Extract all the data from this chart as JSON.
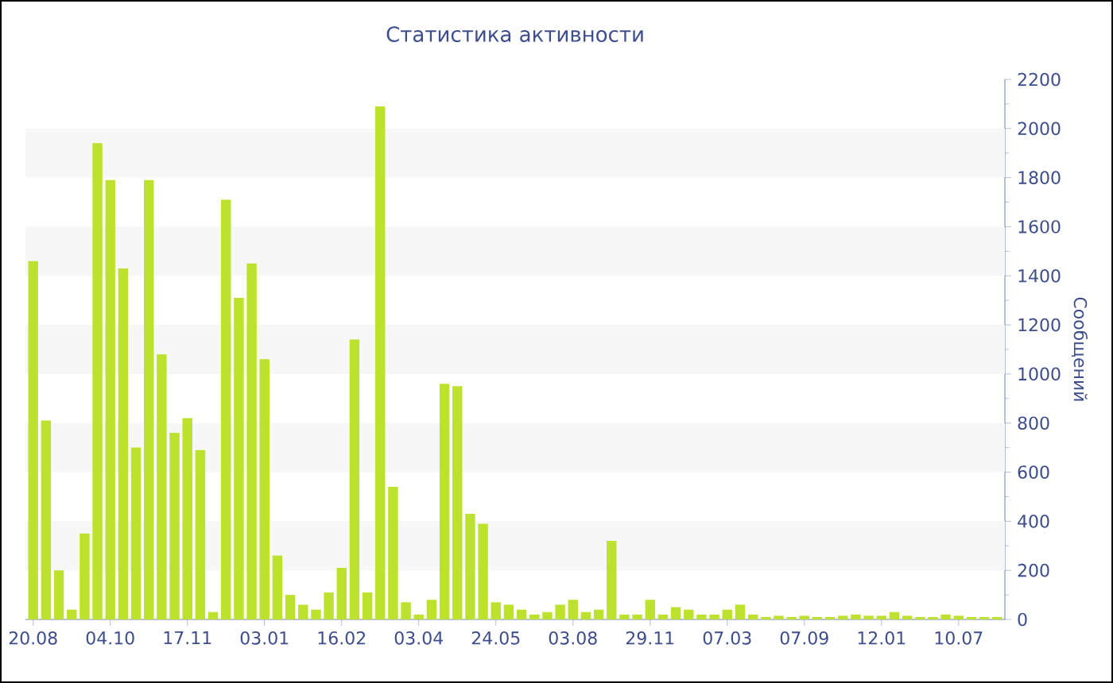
{
  "chart_data": {
    "type": "bar",
    "title": "Статистика активности",
    "ylabel": "Сообщений",
    "color": "#bce22e",
    "categories": [
      "20.08",
      null,
      null,
      null,
      null,
      null,
      "04.10",
      null,
      null,
      null,
      null,
      null,
      "17.11",
      null,
      null,
      null,
      null,
      null,
      "03.01",
      null,
      null,
      null,
      null,
      null,
      "16.02",
      null,
      null,
      null,
      null,
      null,
      "03.04",
      null,
      null,
      null,
      null,
      null,
      "24.05",
      null,
      null,
      null,
      null,
      null,
      "03.08",
      null,
      null,
      null,
      null,
      null,
      "29.11",
      null,
      null,
      null,
      null,
      null,
      "07.03",
      null,
      null,
      null,
      null,
      null,
      "07.09",
      null,
      null,
      null,
      null,
      null,
      "12.01",
      null,
      null,
      null,
      null,
      null,
      "10.07",
      null,
      null,
      null
    ],
    "values": [
      1460,
      810,
      200,
      40,
      350,
      1940,
      1790,
      1430,
      700,
      1790,
      1080,
      760,
      820,
      690,
      30,
      1710,
      1310,
      1450,
      1060,
      260,
      100,
      60,
      40,
      110,
      210,
      1140,
      110,
      2090,
      540,
      70,
      20,
      80,
      960,
      950,
      430,
      390,
      70,
      60,
      40,
      20,
      30,
      60,
      80,
      30,
      40,
      320,
      20,
      20,
      80,
      20,
      50,
      40,
      20,
      20,
      40,
      60,
      20,
      10,
      15,
      10,
      15,
      10,
      10,
      15,
      20,
      15,
      15,
      30,
      15,
      10,
      10,
      20,
      15,
      10,
      10,
      10
    ],
    "ylim": [
      0,
      2200
    ],
    "yticks": [
      0,
      200,
      400,
      600,
      800,
      1000,
      1200,
      1400,
      1600,
      1800,
      2000,
      2200
    ],
    "bands": [
      {
        "axis": "y",
        "from": 200,
        "to": 400,
        "color": "#f7f7f7"
      },
      {
        "axis": "y",
        "from": 600,
        "to": 800,
        "color": "#f7f7f7"
      },
      {
        "axis": "y",
        "from": 1000,
        "to": 1200,
        "color": "#f7f7f7"
      },
      {
        "axis": "y",
        "from": 1400,
        "to": 1600,
        "color": "#f7f7f7"
      },
      {
        "axis": "y",
        "from": 1800,
        "to": 2000,
        "color": "#f7f7f7"
      }
    ]
  }
}
